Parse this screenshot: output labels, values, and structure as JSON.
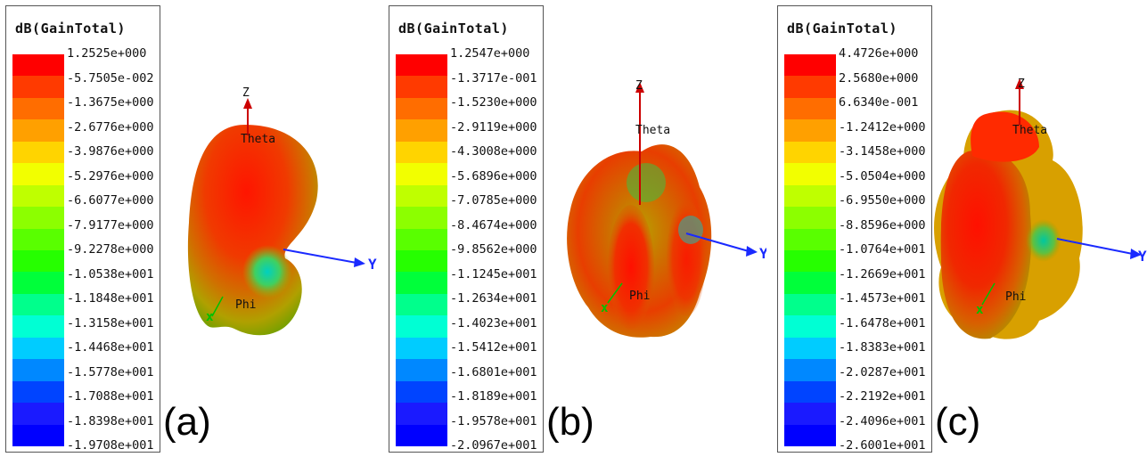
{
  "legend_title": "dB(GainTotal)",
  "swatch_colors": [
    "#ff0000",
    "#ff3a00",
    "#ff6d00",
    "#ffa000",
    "#ffd400",
    "#f2ff00",
    "#bfff00",
    "#8cff00",
    "#59ff00",
    "#26ff00",
    "#00ff3a",
    "#00ff8c",
    "#00ffd4",
    "#00ccff",
    "#0088ff",
    "#0044ff",
    "#1a1aff",
    "#0000ff"
  ],
  "panels": [
    {
      "label": "(a)",
      "values": [
        "1.2525e+000",
        "-5.7505e-002",
        "-1.3675e+000",
        "-2.6776e+000",
        "-3.9876e+000",
        "-5.2976e+000",
        "-6.6077e+000",
        "-7.9177e+000",
        "-9.2278e+000",
        "-1.0538e+001",
        "-1.1848e+001",
        "-1.3158e+001",
        "-1.4468e+001",
        "-1.5778e+001",
        "-1.7088e+001",
        "-1.8398e+001",
        "-1.9708e+001"
      ],
      "axes": {
        "z": "Z",
        "theta": "Theta",
        "phi": "Phi",
        "y": "Y"
      }
    },
    {
      "label": "(b)",
      "values": [
        "1.2547e+000",
        "-1.3717e-001",
        "-1.5230e+000",
        "-2.9119e+000",
        "-4.3008e+000",
        "-5.6896e+000",
        "-7.0785e+000",
        "-8.4674e+000",
        "-9.8562e+000",
        "-1.1245e+001",
        "-1.2634e+001",
        "-1.4023e+001",
        "-1.5412e+001",
        "-1.6801e+001",
        "-1.8189e+001",
        "-1.9578e+001",
        "-2.0967e+001"
      ],
      "axes": {
        "z": "Z",
        "theta": "Theta",
        "phi": "Phi",
        "y": "Y"
      }
    },
    {
      "label": "(c)",
      "values": [
        "4.4726e+000",
        "2.5680e+000",
        "6.6340e-001",
        "-1.2412e+000",
        "-3.1458e+000",
        "-5.0504e+000",
        "-6.9550e+000",
        "-8.8596e+000",
        "-1.0764e+001",
        "-1.2669e+001",
        "-1.4573e+001",
        "-1.6478e+001",
        "-1.8383e+001",
        "-2.0287e+001",
        "-2.2192e+001",
        "-2.4096e+001",
        "-2.6001e+001"
      ],
      "axes": {
        "z": "Z",
        "theta": "Theta",
        "phi": "Phi",
        "y": "Y"
      }
    }
  ]
}
